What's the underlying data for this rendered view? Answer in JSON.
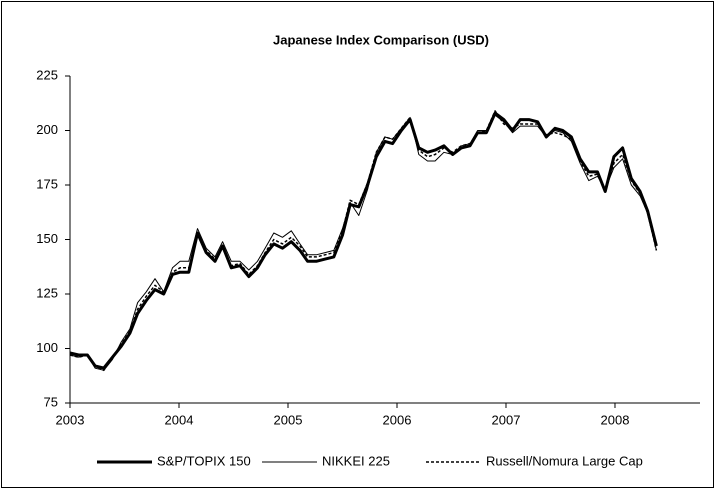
{
  "chart_data": {
    "type": "line",
    "title": "Japanese Index Comparison (USD)",
    "x": [
      2003.0,
      2003.08,
      2003.16,
      2003.23,
      2003.31,
      2003.39,
      2003.47,
      2003.55,
      2003.62,
      2003.7,
      2003.78,
      2003.86,
      2003.94,
      2004.01,
      2004.09,
      2004.17,
      2004.25,
      2004.33,
      2004.4,
      2004.48,
      2004.56,
      2004.64,
      2004.72,
      2004.79,
      2004.87,
      2004.95,
      2005.03,
      2005.11,
      2005.18,
      2005.26,
      2005.34,
      2005.42,
      2005.5,
      2005.57,
      2005.65,
      2005.73,
      2005.81,
      2005.89,
      2005.96,
      2006.04,
      2006.12,
      2006.2,
      2006.28,
      2006.35,
      2006.43,
      2006.51,
      2006.59,
      2006.67,
      2006.74,
      2006.82,
      2006.9,
      2006.98,
      2007.06,
      2007.13,
      2007.21,
      2007.29,
      2007.37,
      2007.45,
      2007.52,
      2007.6,
      2007.68,
      2007.76,
      2007.84,
      2007.91,
      2007.99,
      2008.07,
      2008.15,
      2008.23,
      2008.3,
      2008.38
    ],
    "series": [
      {
        "name": "S&P/TOPIX 150",
        "color": "#000000",
        "width": 3,
        "style": "solid",
        "values": [
          98,
          97,
          97,
          92,
          91,
          96,
          101,
          107,
          116,
          122,
          127,
          125,
          134,
          135,
          135,
          153,
          144,
          140,
          147,
          137,
          138,
          133,
          137,
          143,
          148,
          146,
          149,
          145,
          140,
          140,
          141,
          142,
          152,
          166,
          165,
          175,
          188,
          195,
          194,
          200,
          205,
          192,
          190,
          191,
          193,
          189,
          192,
          193,
          199,
          199,
          208,
          205,
          200,
          205,
          205,
          204,
          197,
          201,
          200,
          197,
          187,
          181,
          181,
          172,
          188,
          192,
          178,
          172,
          163,
          147
        ]
      },
      {
        "name": "NIKKEI 225",
        "color": "#000000",
        "width": 1,
        "style": "solid",
        "values": [
          97,
          96,
          97,
          91,
          90,
          95,
          103,
          109,
          121,
          126,
          132,
          126,
          137,
          140,
          140,
          155,
          146,
          142,
          149,
          140,
          140,
          136,
          140,
          146,
          153,
          151,
          154,
          148,
          143,
          143,
          144,
          145,
          155,
          167,
          161,
          173,
          190,
          197,
          196,
          201,
          206,
          189,
          186,
          186,
          190,
          189,
          193,
          194,
          200,
          200,
          207,
          204,
          199,
          202,
          202,
          202,
          197,
          200,
          199,
          195,
          185,
          177,
          179,
          173,
          183,
          187,
          175,
          170,
          162,
          145
        ]
      },
      {
        "name": "Russell/Nomura Large Cap",
        "color": "#000000",
        "width": 1.5,
        "style": "dashed",
        "values": [
          97,
          96,
          97,
          92,
          90,
          96,
          102,
          108,
          118,
          124,
          129,
          126,
          135,
          137,
          137,
          152,
          145,
          141,
          147,
          138,
          139,
          134,
          138,
          144,
          150,
          148,
          151,
          147,
          142,
          142,
          143,
          144,
          154,
          168,
          166,
          176,
          190,
          197,
          196,
          201,
          206,
          191,
          188,
          189,
          192,
          190,
          193,
          194,
          199,
          200,
          209,
          203,
          201,
          203,
          203,
          203,
          198,
          199,
          198,
          196,
          186,
          179,
          180,
          172,
          185,
          189,
          177,
          171,
          162,
          145
        ]
      }
    ],
    "xlim": [
      2003,
      2008.78
    ],
    "xticks": [
      2003,
      2004,
      2005,
      2006,
      2007,
      2008
    ],
    "ylim": [
      75,
      225
    ],
    "yticks": [
      75,
      100,
      125,
      150,
      175,
      200,
      225
    ],
    "legend": "bottom"
  }
}
